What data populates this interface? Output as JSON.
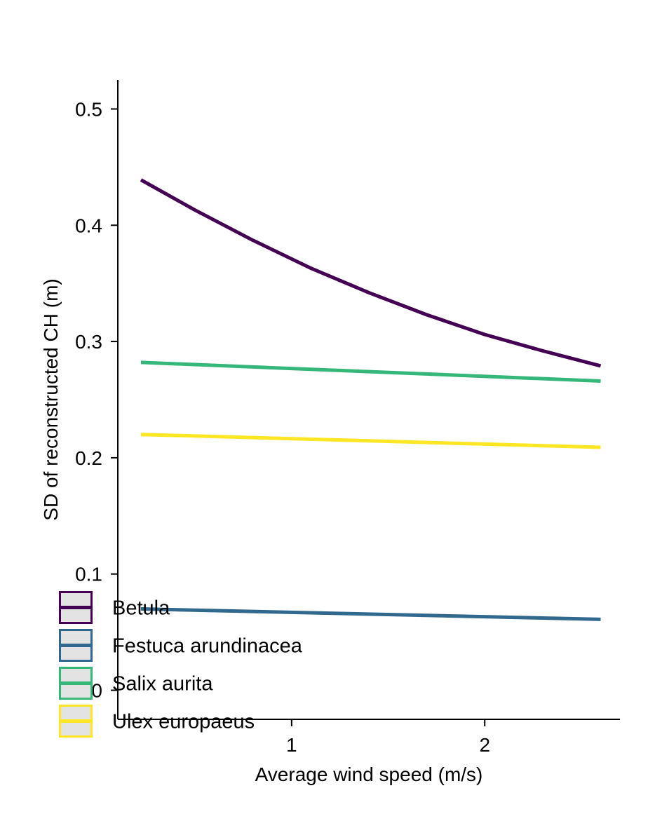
{
  "chart_data": {
    "type": "line",
    "title": "",
    "xlabel": "Average wind speed (m/s)",
    "ylabel": "SD of reconstructed CH (m)",
    "xlim": [
      0.1,
      2.7
    ],
    "ylim": [
      -0.025,
      0.525
    ],
    "x_ticks": [
      1,
      2
    ],
    "x_tick_labels": [
      "1",
      "2"
    ],
    "y_ticks": [
      0.0,
      0.1,
      0.2,
      0.3,
      0.4,
      0.5
    ],
    "y_tick_labels": [
      "0",
      "0.1",
      "0.2",
      "0.3",
      "0.4",
      "0.5"
    ],
    "grid": false,
    "legend_position": "bottom-left",
    "series": [
      {
        "name": "Betula",
        "color": "#440154",
        "x": [
          0.22,
          0.5,
          0.8,
          1.1,
          1.4,
          1.7,
          2.0,
          2.3,
          2.6
        ],
        "y": [
          0.439,
          0.413,
          0.387,
          0.363,
          0.342,
          0.323,
          0.306,
          0.292,
          0.279
        ]
      },
      {
        "name": "Festuca arundinacea",
        "color": "#31688E",
        "x": [
          0.22,
          2.6
        ],
        "y": [
          0.07,
          0.061
        ]
      },
      {
        "name": "Salix aurita",
        "color": "#35B779",
        "x": [
          0.22,
          2.6
        ],
        "y": [
          0.282,
          0.266
        ]
      },
      {
        "name": "Ulex europaeus",
        "color": "#FDE725",
        "x": [
          0.22,
          2.6
        ],
        "y": [
          0.22,
          0.209
        ]
      }
    ]
  }
}
